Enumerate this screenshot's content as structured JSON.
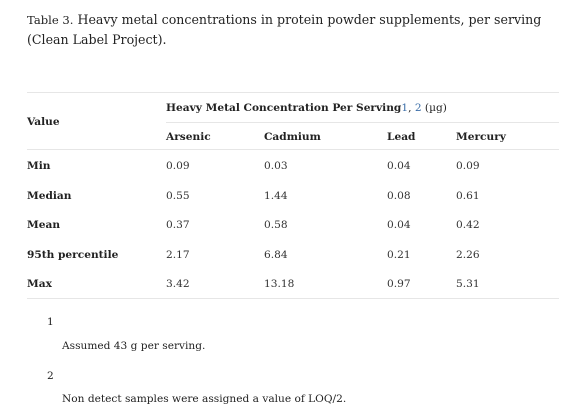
{
  "caption": {
    "label": "Table 3.",
    "text": " Heavy metal concentrations in protein powder supplements, per serving (Clean Label Project)."
  },
  "table": {
    "row_header": "Value",
    "group_header": "Heavy Metal Concentration Per Serving",
    "group_refs": [
      "1",
      "2"
    ],
    "group_unit": " (µg)",
    "columns": [
      "Arsenic",
      "Cadmium",
      "Lead",
      "Mercury"
    ],
    "rows": [
      {
        "label": "Min",
        "values": [
          "0.09",
          "0.03",
          "0.04",
          "0.09"
        ]
      },
      {
        "label": "Median",
        "values": [
          "0.55",
          "1.44",
          "0.08",
          "0.61"
        ]
      },
      {
        "label": "Mean",
        "values": [
          "0.37",
          "0.58",
          "0.04",
          "0.42"
        ]
      },
      {
        "label": "95th percentile",
        "values": [
          "2.17",
          "6.84",
          "0.21",
          "2.26"
        ]
      },
      {
        "label": "Max",
        "values": [
          "3.42",
          "13.18",
          "0.97",
          "5.31"
        ]
      }
    ]
  },
  "footnotes": [
    {
      "num": "1",
      "text": "Assumed 43 g per serving."
    },
    {
      "num": "2",
      "text": "Non detect samples were assigned a value of LOQ/2."
    }
  ]
}
